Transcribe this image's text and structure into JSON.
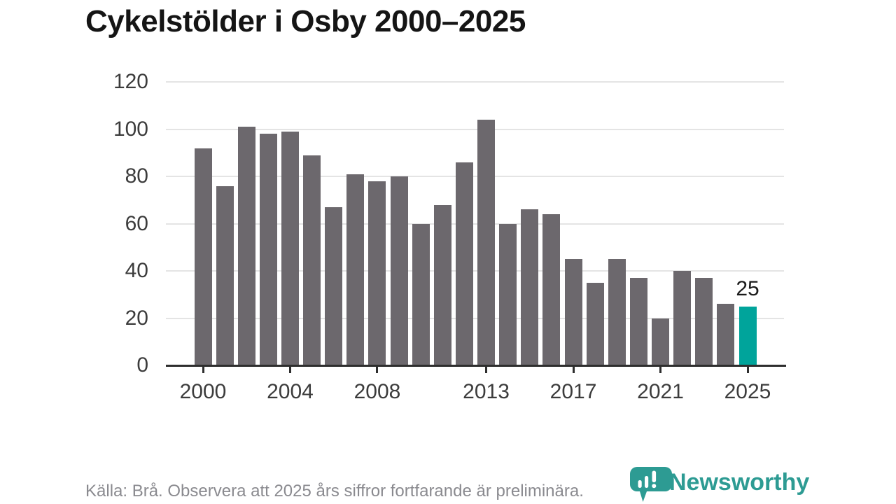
{
  "title": "Cykelstölder i Osby 2000–2025",
  "chart_data": {
    "type": "bar",
    "categories": [
      2000,
      2001,
      2002,
      2003,
      2004,
      2005,
      2006,
      2007,
      2008,
      2009,
      2010,
      2011,
      2012,
      2013,
      2014,
      2015,
      2016,
      2017,
      2018,
      2019,
      2020,
      2021,
      2022,
      2023,
      2024,
      2025
    ],
    "values": [
      92,
      76,
      101,
      98,
      99,
      89,
      67,
      81,
      78,
      80,
      60,
      68,
      86,
      104,
      60,
      66,
      64,
      45,
      35,
      45,
      37,
      20,
      40,
      37,
      26,
      25
    ],
    "title": "Cykelstölder i Osby 2000–2025",
    "xlabel": "",
    "ylabel": "",
    "ylim": [
      0,
      120
    ],
    "yticks": [
      0,
      20,
      40,
      60,
      80,
      100,
      120
    ],
    "xtick_years": [
      2000,
      2004,
      2008,
      2013,
      2017,
      2021,
      2025
    ],
    "grid": true,
    "legend": "none",
    "highlight_year": 2025,
    "highlight_value_label": "25"
  },
  "colors": {
    "bar": "#6c686d",
    "highlight_bar": "#00a49b",
    "gridline": "#e4e4e4",
    "axis": "#2e2e2e",
    "tick_label": "#3c3c3c",
    "title_text": "#151515",
    "footer_text": "#8a8a8f",
    "logo_teal": "#2d9b93",
    "background": "#ffffff"
  },
  "footer": {
    "source_note": "Källa: Brå. Observera att 2025 års siffror fortfarande är preliminära."
  },
  "logo": {
    "wordmark": "Newsworthy",
    "icon": "newsworthy-speech-bubble-bar-chart-icon"
  }
}
